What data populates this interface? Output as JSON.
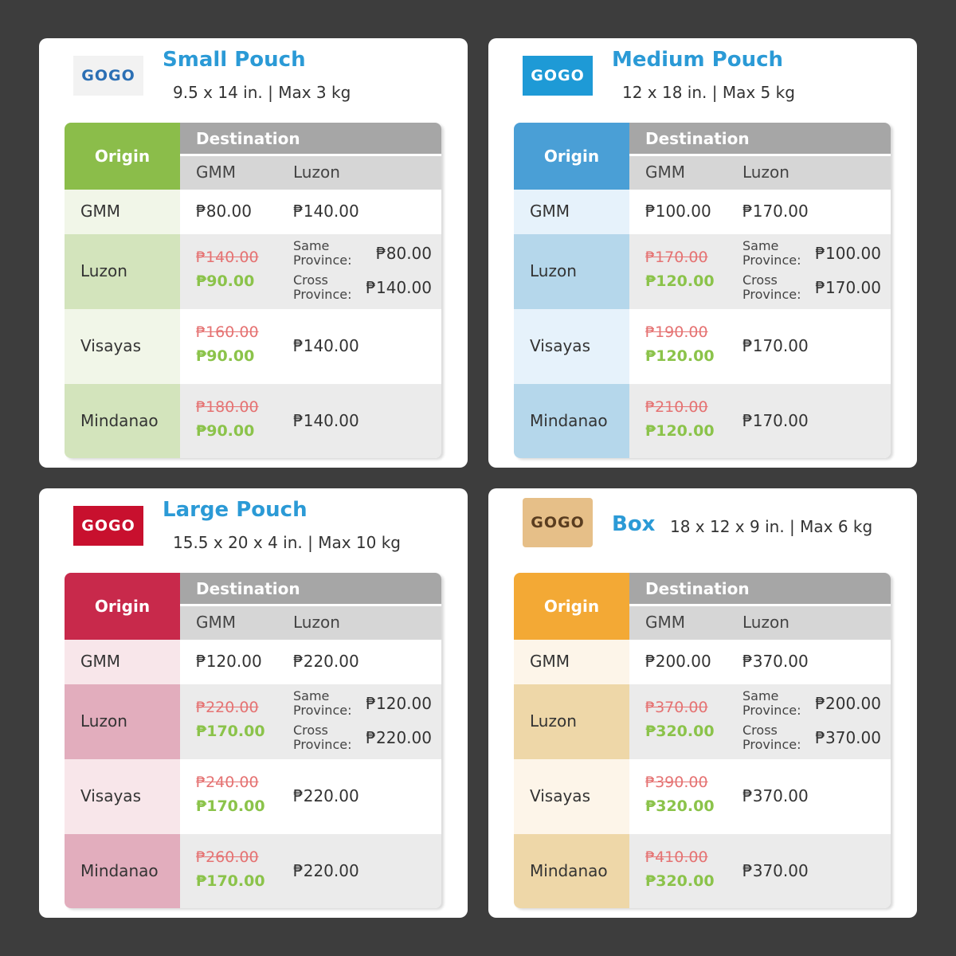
{
  "cards": [
    {
      "logo": "GOGO",
      "title": "Small Pouch",
      "specs": "9.5 x 14 in. | Max 3 kg",
      "table": {
        "origin_header": "Origin",
        "destination_header": "Destination",
        "columns": [
          "GMM",
          "Luzon"
        ],
        "rows": [
          {
            "origin": "GMM",
            "gmm": "₱80.00",
            "luzon": "₱140.00"
          },
          {
            "origin": "Luzon",
            "gmm_old": "₱140.00",
            "gmm": "₱90.00",
            "luzon_same_label": "Same Province:",
            "luzon_same": "₱80.00",
            "luzon_cross_label": "Cross Province:",
            "luzon_cross": "₱140.00"
          },
          {
            "origin": "Visayas",
            "gmm_old": "₱160.00",
            "gmm": "₱90.00",
            "luzon": "₱140.00"
          },
          {
            "origin": "Mindanao",
            "gmm_old": "₱180.00",
            "gmm": "₱90.00",
            "luzon": "₱140.00"
          }
        ]
      }
    },
    {
      "logo": "GOGO",
      "title": "Medium Pouch",
      "specs": "12 x 18 in. | Max 5 kg",
      "table": {
        "origin_header": "Origin",
        "destination_header": "Destination",
        "columns": [
          "GMM",
          "Luzon"
        ],
        "rows": [
          {
            "origin": "GMM",
            "gmm": "₱100.00",
            "luzon": "₱170.00"
          },
          {
            "origin": "Luzon",
            "gmm_old": "₱170.00",
            "gmm": "₱120.00",
            "luzon_same_label": "Same Province:",
            "luzon_same": "₱100.00",
            "luzon_cross_label": "Cross Province:",
            "luzon_cross": "₱170.00"
          },
          {
            "origin": "Visayas",
            "gmm_old": "₱190.00",
            "gmm": "₱120.00",
            "luzon": "₱170.00"
          },
          {
            "origin": "Mindanao",
            "gmm_old": "₱210.00",
            "gmm": "₱120.00",
            "luzon": "₱170.00"
          }
        ]
      }
    },
    {
      "logo": "GOGO",
      "title": "Large Pouch",
      "specs": "15.5 x 20 x 4 in. | Max 10 kg",
      "table": {
        "origin_header": "Origin",
        "destination_header": "Destination",
        "columns": [
          "GMM",
          "Luzon"
        ],
        "rows": [
          {
            "origin": "GMM",
            "gmm": "₱120.00",
            "luzon": "₱220.00"
          },
          {
            "origin": "Luzon",
            "gmm_old": "₱220.00",
            "gmm": "₱170.00",
            "luzon_same_label": "Same Province:",
            "luzon_same": "₱120.00",
            "luzon_cross_label": "Cross Province:",
            "luzon_cross": "₱220.00"
          },
          {
            "origin": "Visayas",
            "gmm_old": "₱240.00",
            "gmm": "₱170.00",
            "luzon": "₱220.00"
          },
          {
            "origin": "Mindanao",
            "gmm_old": "₱260.00",
            "gmm": "₱170.00",
            "luzon": "₱220.00"
          }
        ]
      }
    },
    {
      "logo": "GOGO",
      "title": "Box",
      "specs": "18 x 12 x 9 in. | Max 6 kg",
      "table": {
        "origin_header": "Origin",
        "destination_header": "Destination",
        "columns": [
          "GMM",
          "Luzon"
        ],
        "rows": [
          {
            "origin": "GMM",
            "gmm": "₱200.00",
            "luzon": "₱370.00"
          },
          {
            "origin": "Luzon",
            "gmm_old": "₱370.00",
            "gmm": "₱320.00",
            "luzon_same_label": "Same Province:",
            "luzon_same": "₱200.00",
            "luzon_cross_label": "Cross Province:",
            "luzon_cross": "₱370.00"
          },
          {
            "origin": "Visayas",
            "gmm_old": "₱390.00",
            "gmm": "₱320.00",
            "luzon": "₱370.00"
          },
          {
            "origin": "Mindanao",
            "gmm_old": "₱410.00",
            "gmm": "₱320.00",
            "luzon": "₱370.00"
          }
        ]
      }
    }
  ]
}
